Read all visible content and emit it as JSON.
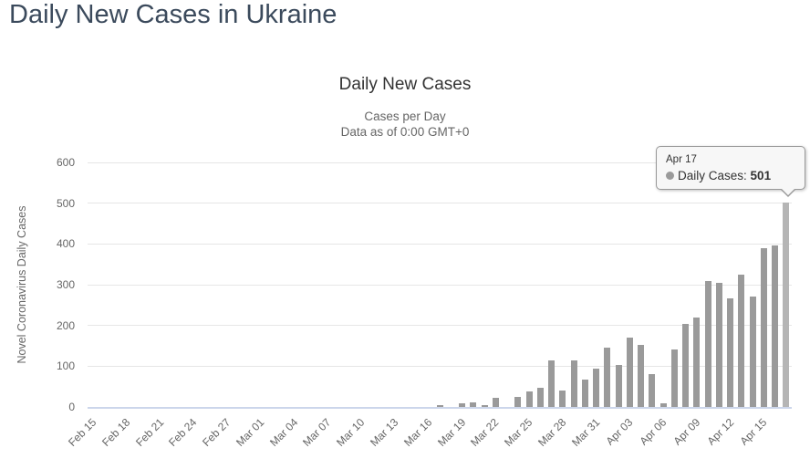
{
  "page": {
    "title": "Daily New Cases in Ukraine"
  },
  "tooltip": {
    "date": "Apr 17",
    "series_label": "Daily Cases:",
    "value": "501",
    "marker_color": "#9a9a9a"
  },
  "chart_data": {
    "type": "bar",
    "title": "Daily New Cases",
    "subtitle1": "Cases per Day",
    "subtitle2": "Data as of 0:00 GMT+0",
    "xlabel": "",
    "ylabel": "Novel Coronavirus Daily Cases",
    "ylim": [
      0,
      600
    ],
    "yticks": [
      0,
      100,
      200,
      300,
      400,
      500,
      600
    ],
    "grid": true,
    "legend_position": "none",
    "xtick_every": 3,
    "hover_index": 62,
    "bar_color": "#9a9a9a",
    "hover_bar_color": "#b5b5b5",
    "grid_color": "#e6e6e6",
    "axis_line_color": "#ccd6eb",
    "categories": [
      "Feb 15",
      "Feb 16",
      "Feb 17",
      "Feb 18",
      "Feb 19",
      "Feb 20",
      "Feb 21",
      "Feb 22",
      "Feb 23",
      "Feb 24",
      "Feb 25",
      "Feb 26",
      "Feb 27",
      "Feb 28",
      "Feb 29",
      "Mar 01",
      "Mar 02",
      "Mar 03",
      "Mar 04",
      "Mar 05",
      "Mar 06",
      "Mar 07",
      "Mar 08",
      "Mar 09",
      "Mar 10",
      "Mar 11",
      "Mar 12",
      "Mar 13",
      "Mar 14",
      "Mar 15",
      "Mar 16",
      "Mar 17",
      "Mar 18",
      "Mar 19",
      "Mar 20",
      "Mar 21",
      "Mar 22",
      "Mar 23",
      "Mar 24",
      "Mar 25",
      "Mar 26",
      "Mar 27",
      "Mar 28",
      "Mar 29",
      "Mar 30",
      "Mar 31",
      "Apr 01",
      "Apr 02",
      "Apr 03",
      "Apr 04",
      "Apr 05",
      "Apr 06",
      "Apr 07",
      "Apr 08",
      "Apr 09",
      "Apr 10",
      "Apr 11",
      "Apr 12",
      "Apr 13",
      "Apr 14",
      "Apr 15",
      "Apr 16",
      "Apr 17"
    ],
    "values": [
      0,
      0,
      0,
      0,
      0,
      0,
      0,
      0,
      0,
      0,
      0,
      0,
      0,
      0,
      0,
      0,
      0,
      0,
      0,
      0,
      0,
      0,
      0,
      0,
      0,
      0,
      0,
      0,
      0,
      0,
      0,
      5,
      0,
      10,
      11,
      5,
      22,
      0,
      25,
      38,
      47,
      115,
      40,
      114,
      68,
      95,
      145,
      102,
      170,
      153,
      81,
      8,
      140,
      203,
      220,
      310,
      305,
      266,
      325,
      270,
      390,
      397,
      501
    ]
  }
}
